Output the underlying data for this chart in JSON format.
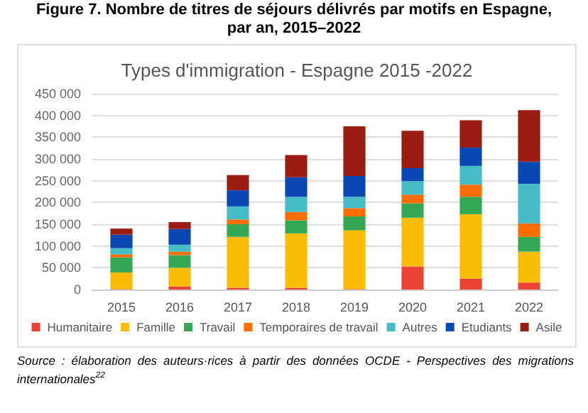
{
  "chart_data": {
    "type": "bar",
    "stacked": true,
    "title": "Figure 7. Nombre de titres de séjours délivrés par motifs en Espagne, par an, 2015–2022",
    "subtitle": "Types d'immigration - Espagne 2015 -2022",
    "annotations": [
      "Source : élaboration des auteurs·rices à partir des données OCDE - Perspectives des migrations internationales$^{22}$"
    ],
    "categories": [
      "2015",
      "2016",
      "2017",
      "2018",
      "2019",
      "2020",
      "2021",
      "2022"
    ],
    "series": [
      {
        "name": "Humanitaire",
        "color": "#ea4335",
        "values": [
          1000,
          7000,
          4000,
          4000,
          1000,
          53000,
          25000,
          16000
        ]
      },
      {
        "name": "Famille",
        "color": "#fbbc04",
        "values": [
          38000,
          43000,
          117000,
          125000,
          135000,
          112000,
          148000,
          71000
        ]
      },
      {
        "name": "Travail",
        "color": "#34a853",
        "values": [
          35000,
          29000,
          29000,
          30000,
          32000,
          33000,
          40000,
          34000
        ]
      },
      {
        "name": "Temporaires de travail",
        "color": "#ff6d01",
        "values": [
          7000,
          8000,
          11000,
          19000,
          19000,
          20000,
          28000,
          31000
        ]
      },
      {
        "name": "Autres",
        "color": "#46bdc6",
        "values": [
          14000,
          16000,
          30000,
          35000,
          26000,
          31000,
          43000,
          91000
        ]
      },
      {
        "name": "Etudiants",
        "color": "#0b47b4",
        "values": [
          31000,
          36000,
          37000,
          45000,
          48000,
          30000,
          42000,
          51000
        ]
      },
      {
        "name": "Asile",
        "color": "#9b1c12",
        "values": [
          14000,
          16000,
          35000,
          51000,
          114000,
          86000,
          63000,
          118000
        ]
      }
    ],
    "ylim": [
      0,
      450000
    ],
    "yticks": [
      {
        "value": 0,
        "label": "0"
      },
      {
        "value": 50000,
        "label": "50 000"
      },
      {
        "value": 100000,
        "label": "100 000"
      },
      {
        "value": 150000,
        "label": "150 000"
      },
      {
        "value": 200000,
        "label": "200 000"
      },
      {
        "value": 250000,
        "label": "250 000"
      },
      {
        "value": 300000,
        "label": "300 000"
      },
      {
        "value": 350000,
        "label": "350 000"
      },
      {
        "value": 400000,
        "label": "400 000"
      },
      {
        "value": 450000,
        "label": "450 000"
      }
    ],
    "grid": "y",
    "legend": "bottom"
  }
}
